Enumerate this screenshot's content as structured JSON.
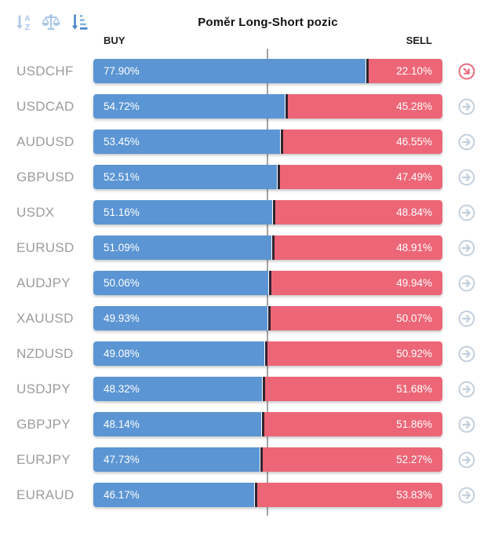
{
  "widget": {
    "title": "Poměr Long-Short pozic",
    "columns": {
      "buy": "BUY",
      "sell": "SELL"
    },
    "toolbar": [
      {
        "icon": "sort-alphabetical-icon",
        "state": "inactive"
      },
      {
        "icon": "balance-scale-icon",
        "state": "inactive"
      },
      {
        "icon": "sort-amount-desc-icon",
        "state": "active"
      }
    ],
    "colors": {
      "buy": "#5b95d3",
      "sell": "#ed6677",
      "divider": "#2e2530",
      "center_line": "#a3a3a3",
      "label": "#9c9c9c",
      "icon_light": "#a9c7e8",
      "icon_dark": "#4a86c8",
      "action_gray": "#c3cfdc",
      "action_red": "#e96a7a"
    }
  },
  "rows": [
    {
      "pair": "USDCHF",
      "buy": 77.9,
      "sell": 22.1,
      "buy_label": "77.90%",
      "sell_label": "22.10%",
      "action_icon": "arrow-down-right-red"
    },
    {
      "pair": "USDCAD",
      "buy": 54.72,
      "sell": 45.28,
      "buy_label": "54.72%",
      "sell_label": "45.28%",
      "action_icon": "arrow-right"
    },
    {
      "pair": "AUDUSD",
      "buy": 53.45,
      "sell": 46.55,
      "buy_label": "53.45%",
      "sell_label": "46.55%",
      "action_icon": "arrow-right"
    },
    {
      "pair": "GBPUSD",
      "buy": 52.51,
      "sell": 47.49,
      "buy_label": "52.51%",
      "sell_label": "47.49%",
      "action_icon": "arrow-right"
    },
    {
      "pair": "USDX",
      "buy": 51.16,
      "sell": 48.84,
      "buy_label": "51.16%",
      "sell_label": "48.84%",
      "action_icon": "arrow-right"
    },
    {
      "pair": "EURUSD",
      "buy": 51.09,
      "sell": 48.91,
      "buy_label": "51.09%",
      "sell_label": "48.91%",
      "action_icon": "arrow-right"
    },
    {
      "pair": "AUDJPY",
      "buy": 50.06,
      "sell": 49.94,
      "buy_label": "50.06%",
      "sell_label": "49.94%",
      "action_icon": "arrow-right"
    },
    {
      "pair": "XAUUSD",
      "buy": 49.93,
      "sell": 50.07,
      "buy_label": "49.93%",
      "sell_label": "50.07%",
      "action_icon": "arrow-right"
    },
    {
      "pair": "NZDUSD",
      "buy": 49.08,
      "sell": 50.92,
      "buy_label": "49.08%",
      "sell_label": "50.92%",
      "action_icon": "arrow-right"
    },
    {
      "pair": "USDJPY",
      "buy": 48.32,
      "sell": 51.68,
      "buy_label": "48.32%",
      "sell_label": "51.68%",
      "action_icon": "arrow-right"
    },
    {
      "pair": "GBPJPY",
      "buy": 48.14,
      "sell": 51.86,
      "buy_label": "48.14%",
      "sell_label": "51.86%",
      "action_icon": "arrow-right"
    },
    {
      "pair": "EURJPY",
      "buy": 47.73,
      "sell": 52.27,
      "buy_label": "47.73%",
      "sell_label": "52.27%",
      "action_icon": "arrow-right"
    },
    {
      "pair": "EURAUD",
      "buy": 46.17,
      "sell": 53.83,
      "buy_label": "46.17%",
      "sell_label": "53.83%",
      "action_icon": "arrow-right"
    }
  ],
  "chart_data": {
    "type": "bar",
    "subtype": "horizontal-stacked-100pct",
    "title": "Poměr Long-Short pozic",
    "categories": [
      "USDCHF",
      "USDCAD",
      "AUDUSD",
      "GBPUSD",
      "USDX",
      "EURUSD",
      "AUDJPY",
      "XAUUSD",
      "NZDUSD",
      "USDJPY",
      "GBPJPY",
      "EURJPY",
      "EURAUD"
    ],
    "series": [
      {
        "name": "BUY",
        "color": "#5b95d3",
        "values": [
          77.9,
          54.72,
          53.45,
          52.51,
          51.16,
          51.09,
          50.06,
          49.93,
          49.08,
          48.32,
          48.14,
          47.73,
          46.17
        ]
      },
      {
        "name": "SELL",
        "color": "#ed6677",
        "values": [
          22.1,
          45.28,
          46.55,
          47.49,
          48.84,
          48.91,
          49.94,
          50.07,
          50.92,
          51.68,
          51.86,
          52.27,
          53.83
        ]
      }
    ],
    "xlim": [
      0,
      100
    ],
    "reference_line": {
      "value": 50,
      "orientation": "vertical",
      "color": "#a3a3a3"
    },
    "grid": false,
    "legend_position": "top (BUY left, SELL right)"
  }
}
